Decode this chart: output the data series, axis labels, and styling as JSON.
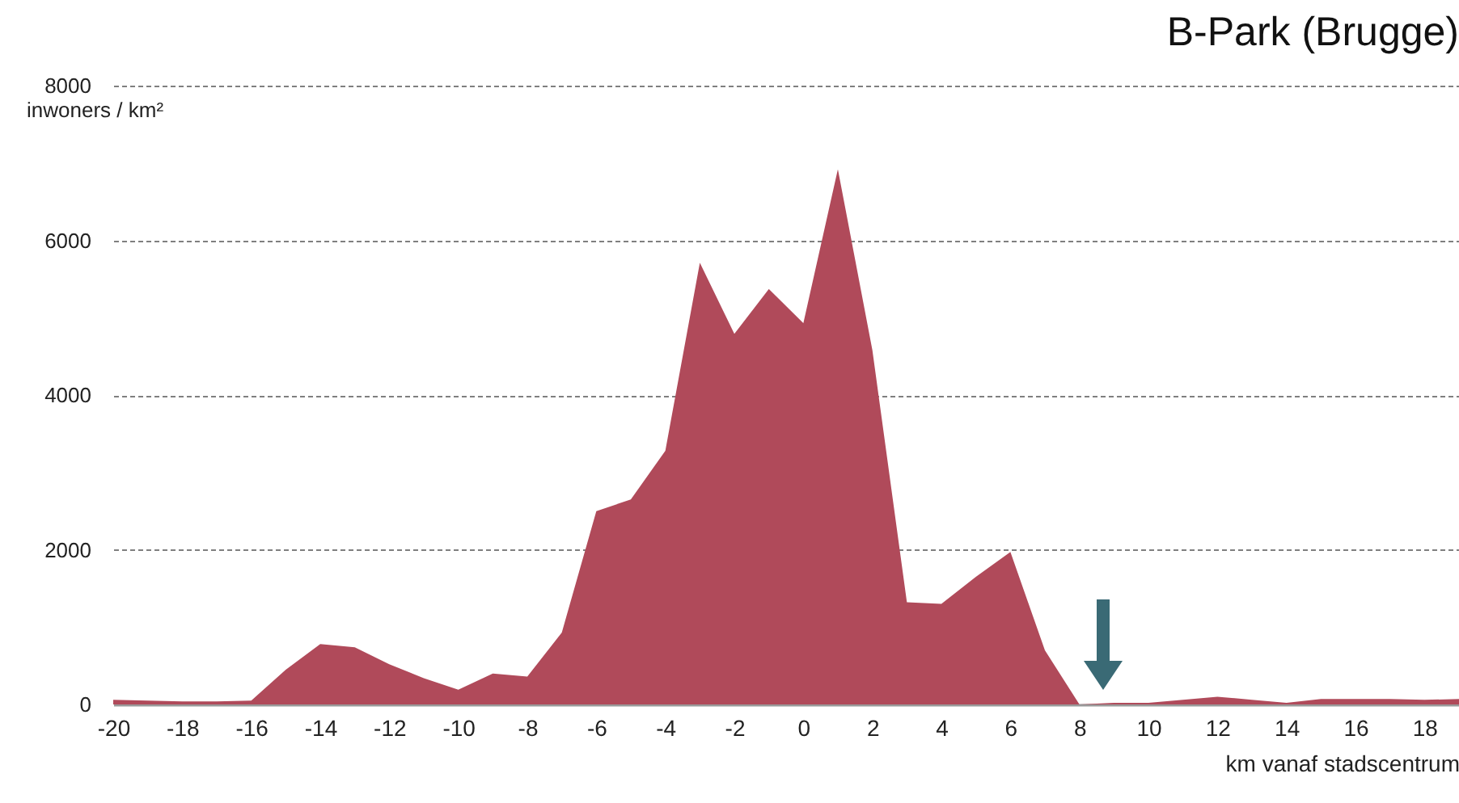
{
  "chart_data": {
    "type": "area",
    "title": "B-Park (Brugge)",
    "xlabel": "km vanaf stadscentrum",
    "ylabel": "inwoners / km²",
    "x": [
      -20,
      -19,
      -18,
      -17,
      -16,
      -15,
      -14,
      -13,
      -12,
      -11,
      -10,
      -9,
      -8,
      -7,
      -6,
      -5,
      -4,
      -3,
      -2,
      -1,
      0,
      1,
      2,
      3,
      4,
      5,
      6,
      7,
      8,
      9,
      10,
      11,
      12,
      13,
      14,
      15,
      16,
      17,
      18,
      19
    ],
    "values": [
      60,
      50,
      40,
      40,
      50,
      450,
      780,
      740,
      520,
      340,
      190,
      400,
      360,
      930,
      2500,
      2650,
      3280,
      5710,
      4790,
      5370,
      4930,
      6920,
      4580,
      1320,
      1300,
      1650,
      1970,
      700,
      0,
      20,
      20,
      60,
      100,
      60,
      20,
      70,
      70,
      70,
      60,
      70
    ],
    "color": "#b04a5a",
    "xlim": [
      -20,
      19
    ],
    "xticks": [
      -20,
      -18,
      -16,
      -14,
      -12,
      -10,
      -8,
      -6,
      -4,
      -2,
      0,
      2,
      4,
      6,
      8,
      10,
      12,
      14,
      16,
      18
    ],
    "ylim": [
      0,
      8000
    ],
    "yticks": [
      0,
      2000,
      4000,
      6000,
      8000
    ],
    "grid": "y"
  }
}
